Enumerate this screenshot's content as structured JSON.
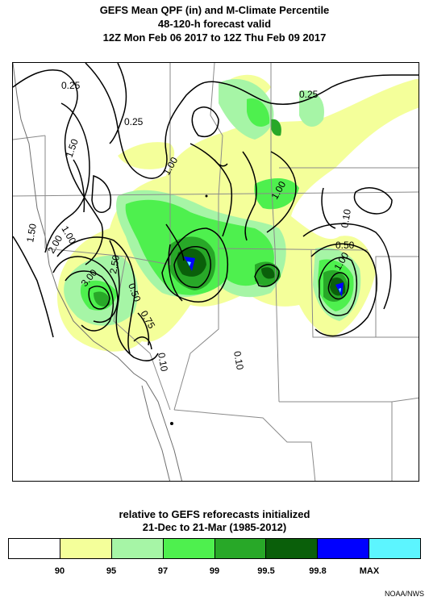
{
  "title": {
    "line1": "GEFS Mean QPF (in) and M-Climate Percentile",
    "line2": "48-120-h forecast valid",
    "line3": "12Z Mon Feb 06 2017 to 12Z Thu Feb 09 2017"
  },
  "contour_labels": [
    "0.25",
    "0.25",
    "0.25",
    "1.50",
    "1.00",
    "1.00",
    "0.10",
    "1.50",
    "1.00",
    "2.00",
    "3.00",
    "2.50",
    "0.75",
    "0.50",
    "0.10",
    "0.10",
    "0.50",
    "1.00"
  ],
  "caption": {
    "line1": "relative to GEFS reforecasts initialized",
    "line2": "21-Dec to 21-Mar (1985-2012)"
  },
  "legend": {
    "colors": [
      "#ffffff",
      "#f4ff9a",
      "#a6f5a6",
      "#4ef04e",
      "#28a828",
      "#0a5f0a",
      "#0000ff",
      "#5cf5ff"
    ],
    "ticks": [
      "90",
      "95",
      "97",
      "99",
      "99.5",
      "99.8",
      "MAX"
    ]
  },
  "credit": "NOAA/NWS"
}
